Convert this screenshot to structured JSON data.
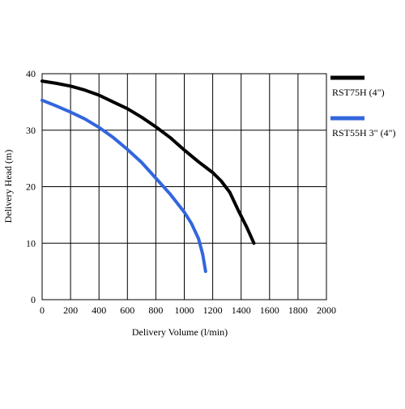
{
  "chart_data": {
    "type": "line",
    "title": "",
    "xlabel": "Delivery Volume (l/min)",
    "ylabel": "Delivery Head (m)",
    "xlim": [
      0,
      2000
    ],
    "ylim": [
      0,
      40
    ],
    "x_ticks": [
      "0",
      "200",
      "400",
      "600",
      "800",
      "1000",
      "1200",
      "1400",
      "1600",
      "1800",
      "2000"
    ],
    "y_ticks": [
      "0",
      "10",
      "20",
      "30",
      "40"
    ],
    "grid": true,
    "legend_position": "right",
    "series": [
      {
        "name": "RST75H (4\")",
        "color": "#000000",
        "points": [
          [
            0,
            38.7
          ],
          [
            100,
            38.3
          ],
          [
            200,
            37.8
          ],
          [
            300,
            37.1
          ],
          [
            400,
            36.2
          ],
          [
            500,
            35.0
          ],
          [
            600,
            33.8
          ],
          [
            700,
            32.3
          ],
          [
            800,
            30.6
          ],
          [
            900,
            28.7
          ],
          [
            1000,
            26.5
          ],
          [
            1100,
            24.4
          ],
          [
            1200,
            22.5
          ],
          [
            1260,
            21.0
          ],
          [
            1320,
            19.0
          ],
          [
            1380,
            15.8
          ],
          [
            1440,
            12.8
          ],
          [
            1490,
            10.0
          ]
        ]
      },
      {
        "name": "RST55H 3\" (4\")",
        "color": "#3366dd",
        "points": [
          [
            0,
            35.3
          ],
          [
            100,
            34.3
          ],
          [
            200,
            33.2
          ],
          [
            300,
            32.0
          ],
          [
            400,
            30.5
          ],
          [
            500,
            28.7
          ],
          [
            600,
            26.6
          ],
          [
            700,
            24.3
          ],
          [
            800,
            21.5
          ],
          [
            900,
            18.7
          ],
          [
            1000,
            15.5
          ],
          [
            1050,
            13.5
          ],
          [
            1100,
            10.8
          ],
          [
            1130,
            8.0
          ],
          [
            1150,
            5.0
          ]
        ]
      }
    ]
  }
}
